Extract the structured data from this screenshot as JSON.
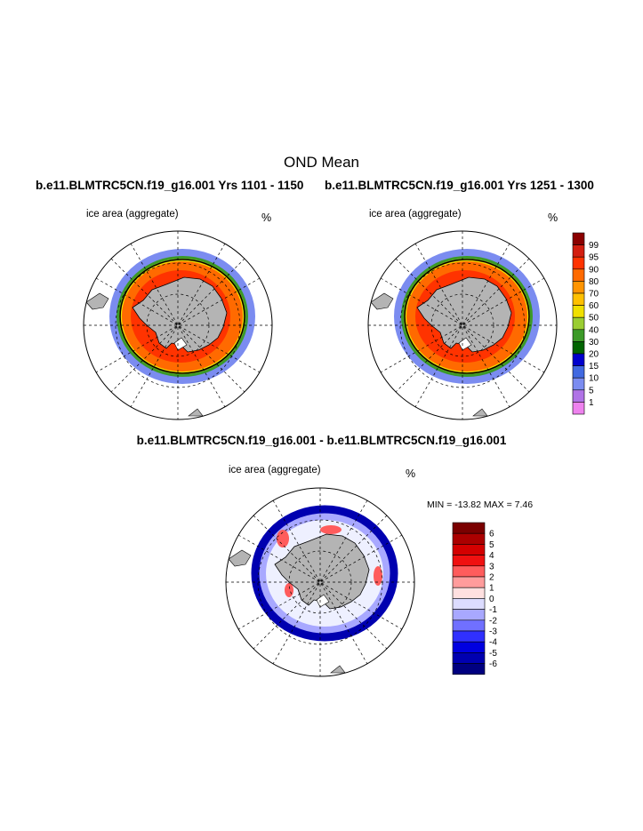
{
  "title": "OND Mean",
  "panels": [
    {
      "case_title": "b.e11.BLMTRC5CN.f19_g16.001  Yrs 1101 - 1150",
      "var_label": "ice area  (aggregate)",
      "units": "%"
    },
    {
      "case_title": "b.e11.BLMTRC5CN.f19_g16.001  Yrs 1251 - 1300",
      "var_label": "ice area  (aggregate)",
      "units": "%"
    }
  ],
  "diff_panel": {
    "case_title": "b.e11.BLMTRC5CN.f19_g16.001 - b.e11.BLMTRC5CN.f19_g16.001",
    "var_label": "ice area  (aggregate)",
    "units": "%",
    "minmax": "MIN = -13.82 MAX =   7.46"
  },
  "colorbar_top": {
    "labels": [
      "99",
      "95",
      "90",
      "80",
      "70",
      "60",
      "50",
      "40",
      "30",
      "20",
      "15",
      "10",
      "5",
      "1"
    ],
    "colors": [
      "#8b0000",
      "#d31e10",
      "#ff3300",
      "#ff6a00",
      "#ff9400",
      "#ffc000",
      "#f0e000",
      "#9acd32",
      "#3c9a28",
      "#006400",
      "#0000cd",
      "#4169e1",
      "#7b8cf0",
      "#b073e6",
      "#ee82ee"
    ]
  },
  "colorbar_diff": {
    "labels": [
      "6",
      "5",
      "4",
      "3",
      "2",
      "1",
      "0",
      "-1",
      "-2",
      "-3",
      "-4",
      "-5",
      "-6"
    ],
    "colors": [
      "#7a0000",
      "#ab0000",
      "#d40000",
      "#f01010",
      "#ff5c5c",
      "#ff9c9c",
      "#ffe0e0",
      "#dcdcff",
      "#a8a8ff",
      "#7070ff",
      "#3030ff",
      "#0000e0",
      "#0000b0",
      "#000080"
    ]
  },
  "map_colors": {
    "land": "#b4b4b4",
    "ice_outer": "#7b8cf0",
    "ice_mid": "#ff6a00",
    "ice_inner": "#ff3300",
    "edge_green": "#3c9a28",
    "edge_yellow": "#f0e000",
    "diff_blue_dark": "#0000b0",
    "diff_blue_light": "#a8a8ff",
    "diff_red": "#ff5c5c"
  }
}
